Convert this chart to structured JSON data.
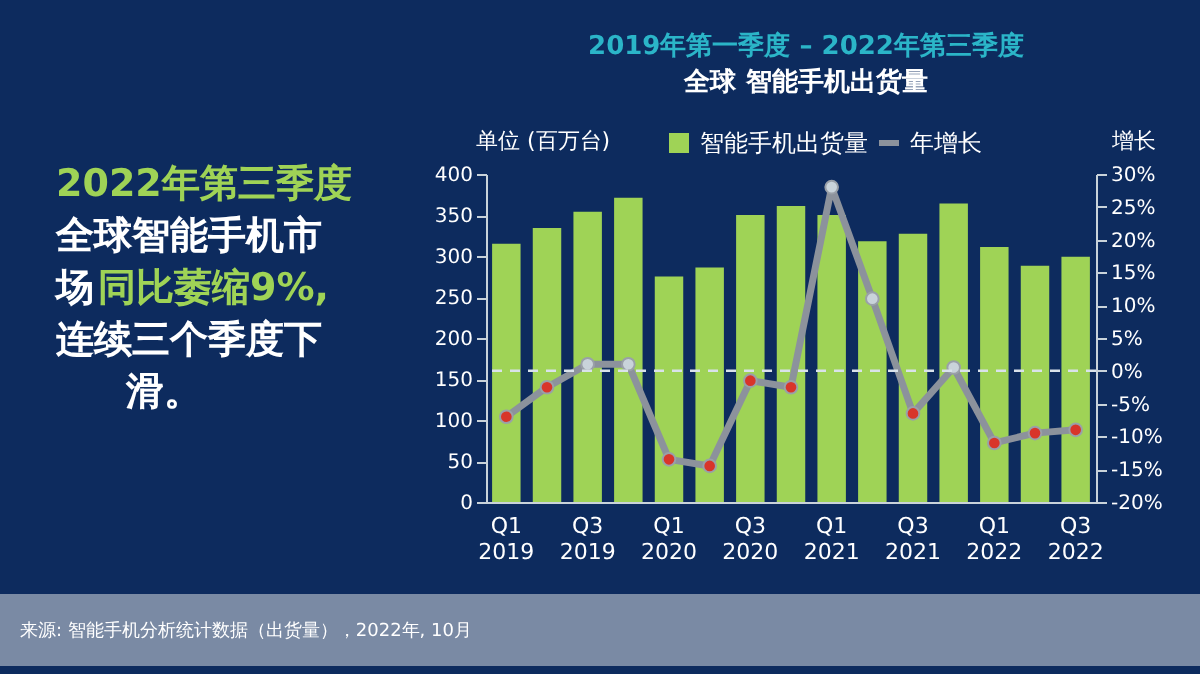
{
  "chart_data": {
    "type": "bar",
    "title": "2019年第一季度 – 2022年第三季度",
    "subtitle": "全球 智能手机出货量",
    "ylabel": "单位 (百万台)",
    "y2label": "增长",
    "categories": [
      "Q1\n2019",
      null,
      "Q3\n2019",
      null,
      "Q1\n2020",
      null,
      "Q3\n2020",
      null,
      "Q1\n2021",
      null,
      "Q3\n2021",
      null,
      "Q1\n2022",
      null,
      "Q3\n2022"
    ],
    "series": [
      {
        "name": "智能手机出货量",
        "color": "#9fd356",
        "values": [
          315,
          334,
          354,
          371,
          275,
          286,
          350,
          361,
          350,
          318,
          327,
          364,
          311,
          288,
          299
        ]
      },
      {
        "name": "年增长",
        "type": "line",
        "axis": "y2",
        "color": "#8c929c",
        "marker": "circle",
        "colors": [
          "#d8352a",
          "#d8352a",
          "#c9d3da",
          "#c9d3da",
          "#d8352a",
          "#d8352a",
          "#d8352a",
          "#d8352a",
          "#c9d3da",
          "#c9d3da",
          "#d8352a",
          "#c9d3da",
          "#d8352a",
          "#d8352a",
          "#d8352a"
        ],
        "values": [
          -7,
          -2.5,
          1,
          1,
          -13.5,
          -14.5,
          -1.5,
          -2.5,
          28,
          11,
          -6.5,
          0.5,
          -11,
          -9.5,
          -9
        ]
      }
    ],
    "ylim": [
      0,
      400
    ],
    "yticks": [
      0,
      50,
      100,
      150,
      200,
      250,
      300,
      350,
      400
    ],
    "y2lim": [
      -20,
      30
    ],
    "y2ticks": [
      {
        "value": -20,
        "label": "-20%"
      },
      {
        "value": -15,
        "label": "-15%"
      },
      {
        "value": -10,
        "label": "-10%"
      },
      {
        "value": -5,
        "label": "-5%"
      },
      {
        "value": 0,
        "label": "0%"
      },
      {
        "value": 5,
        "label": "5%"
      },
      {
        "value": 10,
        "label": "10%"
      },
      {
        "value": 15,
        "label": "15%"
      },
      {
        "value": 20,
        "label": "20%"
      },
      {
        "value": 25,
        "label": "25%"
      },
      {
        "value": 30,
        "label": "30%"
      }
    ],
    "ref_lines": [
      {
        "axis": "y2",
        "value": 0,
        "color": "#d9e2ea",
        "line_style": "dashed"
      }
    ],
    "legend": "top",
    "grid": false,
    "annotations": [
      "2022年第三季度",
      "全球智能手机市",
      "场",
      "同比萎缩9%,",
      "连续三个季度下",
      "滑。",
      "来源: 智能手机分析统计数据（出货量），2022年, 10月"
    ]
  }
}
